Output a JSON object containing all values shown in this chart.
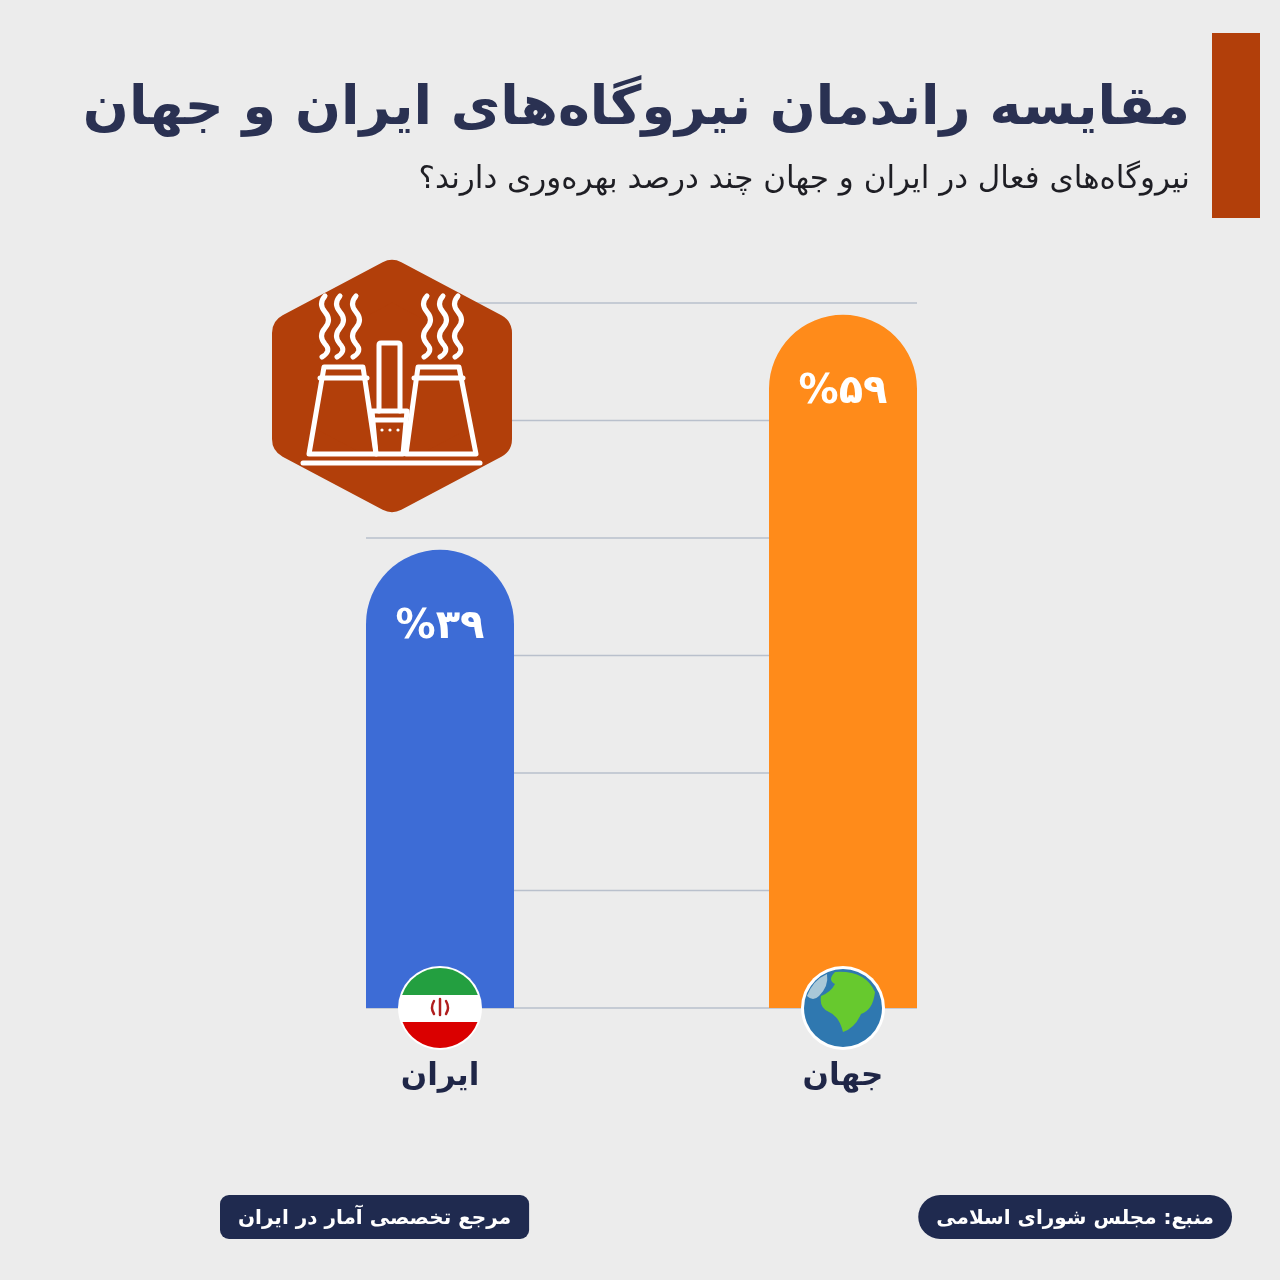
{
  "chart_data": {
    "type": "bar",
    "title": "مقایسه راندمان نیروگاه‌های ایران و جهان",
    "subtitle": "نیروگاه‌های فعال در ایران و جهان چند درصد بهره‌وری دارند؟",
    "categories": [
      "ایران",
      "جهان"
    ],
    "values": [
      39,
      59
    ],
    "colors": [
      "#3d6cd6",
      "#ff8b1a"
    ],
    "value_labels": [
      "%۳۹",
      "%۵۹"
    ],
    "ylim": [
      0,
      60
    ],
    "yticks": [
      {
        "value": 0,
        "label": null
      },
      {
        "value": 10,
        "label": null
      },
      {
        "value": 20,
        "label": null
      },
      {
        "value": 30,
        "label": null
      },
      {
        "value": 40,
        "label": null
      },
      {
        "value": 50,
        "label": null
      },
      {
        "value": 60,
        "label": null
      }
    ],
    "grid": "y",
    "tick_labels": "x",
    "annotations": [
      "منبع: مجلس شورای اسلامی",
      "مرجع تخصصی آمار در ایران"
    ]
  }
}
